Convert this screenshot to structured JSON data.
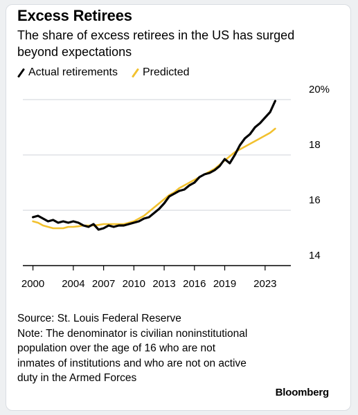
{
  "colors": {
    "actual": "#000000",
    "predicted": "#f2c12e",
    "grid": "#cfd3d8",
    "background": "#ffffff",
    "page": "#eef0f2"
  },
  "chart_data": {
    "type": "line",
    "title": "Excess Retirees",
    "subtitle": "The share of excess retirees in the US has surged beyond expectations",
    "xlabel": "",
    "ylabel": "",
    "x_ticks": [
      "2000",
      "2004",
      "2007",
      "2010",
      "2013",
      "2016",
      "2019",
      "2023"
    ],
    "y_ticks": [
      "20%",
      "18",
      "16",
      "14"
    ],
    "y_tick_values": [
      20,
      18,
      16,
      14
    ],
    "xlim": [
      1999,
      2025
    ],
    "ylim": [
      14,
      20
    ],
    "grid": true,
    "legend_position": "top-left",
    "series": [
      {
        "name": "Actual retirements",
        "color": "#000000",
        "x": [
          2000,
          2000.5,
          2001,
          2001.5,
          2002,
          2002.5,
          2003,
          2003.5,
          2004,
          2004.5,
          2005,
          2005.5,
          2006,
          2006.5,
          2007,
          2007.5,
          2008,
          2008.5,
          2009,
          2009.5,
          2010,
          2010.5,
          2011,
          2011.5,
          2012,
          2012.5,
          2013,
          2013.5,
          2014,
          2014.5,
          2015,
          2015.5,
          2016,
          2016.5,
          2017,
          2017.5,
          2018,
          2018.5,
          2019,
          2019.5,
          2020,
          2020.5,
          2021,
          2021.5,
          2022,
          2022.5,
          2023,
          2023.5,
          2024
        ],
        "y": [
          15.75,
          15.8,
          15.7,
          15.6,
          15.65,
          15.55,
          15.6,
          15.55,
          15.6,
          15.55,
          15.45,
          15.4,
          15.5,
          15.3,
          15.35,
          15.45,
          15.4,
          15.45,
          15.45,
          15.5,
          15.55,
          15.6,
          15.7,
          15.75,
          15.9,
          16.05,
          16.25,
          16.5,
          16.6,
          16.7,
          16.75,
          16.9,
          17.0,
          17.2,
          17.3,
          17.35,
          17.45,
          17.6,
          17.85,
          17.7,
          18.0,
          18.35,
          18.6,
          18.75,
          19.0,
          19.15,
          19.35,
          19.55,
          19.95
        ]
      },
      {
        "name": "Predicted",
        "color": "#f2c12e",
        "x": [
          2000,
          2000.5,
          2001,
          2001.5,
          2002,
          2002.5,
          2003,
          2003.5,
          2004,
          2004.5,
          2005,
          2005.5,
          2006,
          2006.5,
          2007,
          2007.5,
          2008,
          2008.5,
          2009,
          2009.5,
          2010,
          2010.5,
          2011,
          2011.5,
          2012,
          2012.5,
          2013,
          2013.5,
          2014,
          2014.5,
          2015,
          2015.5,
          2016,
          2016.5,
          2017,
          2017.5,
          2018,
          2018.5,
          2019,
          2019.5,
          2020,
          2020.5,
          2021,
          2021.5,
          2022,
          2022.5,
          2023,
          2023.5,
          2024
        ],
        "y": [
          15.6,
          15.55,
          15.45,
          15.4,
          15.35,
          15.35,
          15.35,
          15.4,
          15.4,
          15.42,
          15.45,
          15.45,
          15.45,
          15.47,
          15.5,
          15.5,
          15.5,
          15.5,
          15.5,
          15.55,
          15.6,
          15.7,
          15.8,
          15.95,
          16.1,
          16.25,
          16.4,
          16.55,
          16.65,
          16.8,
          16.9,
          17.0,
          17.1,
          17.2,
          17.3,
          17.4,
          17.5,
          17.65,
          17.8,
          17.95,
          18.1,
          18.2,
          18.3,
          18.4,
          18.5,
          18.6,
          18.7,
          18.8,
          18.95
        ]
      }
    ]
  },
  "legend": {
    "actual_label": "Actual retirements",
    "predicted_label": "Predicted"
  },
  "footer": {
    "source": "Source: St. Louis Federal Reserve",
    "note": "Note: The denominator is civilian noninstitutional population over the age of 16 who are not inmates of institutions and who are not on active duty in the Armed Forces"
  },
  "brand": "Bloomberg"
}
